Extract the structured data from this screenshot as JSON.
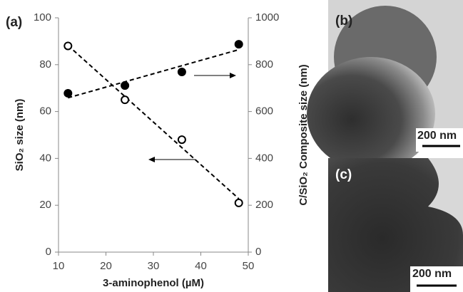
{
  "chart_data": {
    "type": "scatter",
    "panel_label": "(a)",
    "xlabel": "3-aminophenol (µM)",
    "ylabel": "SiO₂ size (nm)",
    "y2label": "C/SiO₂ Composite size (nm)",
    "x": [
      12,
      24,
      36,
      48
    ],
    "series": [
      {
        "color": "#000000",
        "marker": "open",
        "values": [
          88,
          65,
          48,
          21
        ]
      },
      {
        "color": "#000000",
        "marker": "filled",
        "axis": "y2",
        "values": [
          678,
          711,
          769,
          887
        ]
      }
    ],
    "xlim": [
      10,
      50
    ],
    "xticks": [
      10,
      20,
      30,
      40,
      50
    ],
    "ylim": [
      0,
      100
    ],
    "yticks": [
      0,
      20,
      40,
      60,
      80,
      100
    ],
    "y2lim": [
      0,
      1000
    ],
    "y2ticks": [
      0,
      200,
      400,
      600,
      800,
      1000
    ],
    "trendline": true
  },
  "images": [
    {
      "label": "(b)",
      "scale_bar": "200 nm"
    },
    {
      "label": "(c)",
      "scale_bar": "200 nm"
    }
  ]
}
